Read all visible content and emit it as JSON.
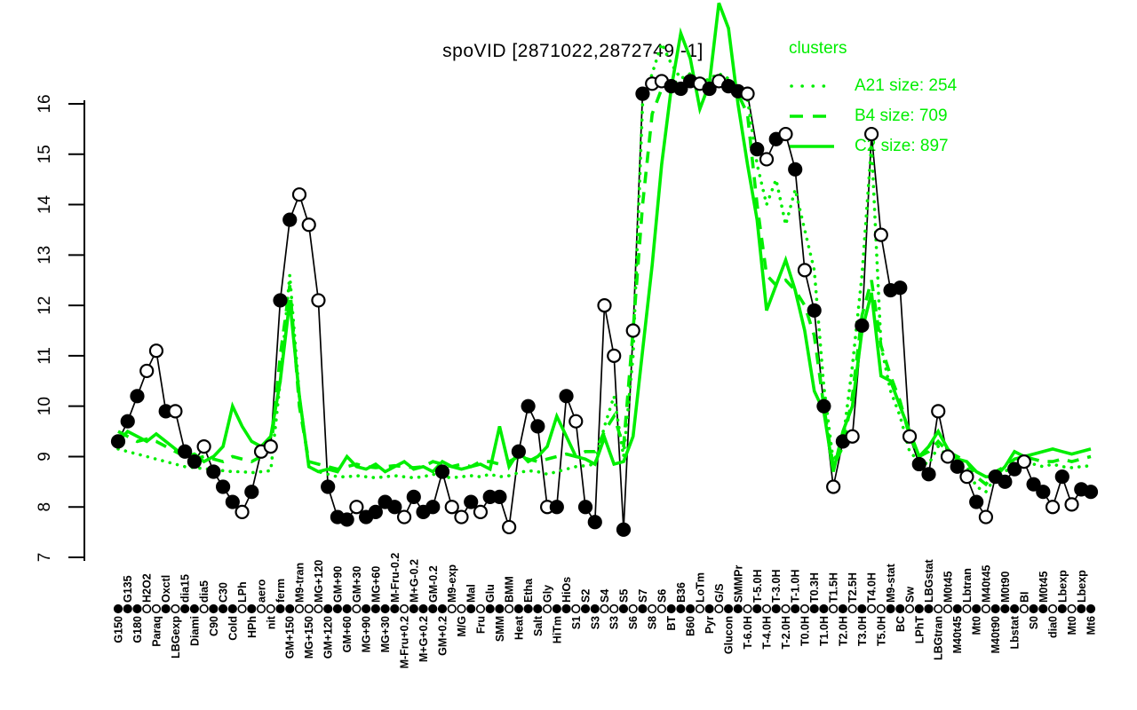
{
  "title_text": "spoVID [2871022,2872749,-1]",
  "legend_title": "clusters",
  "colors": {
    "cluster_green": "#00ee00",
    "gene_black": "#000000",
    "background": "#ffffff"
  },
  "chart_data": {
    "type": "line",
    "title": "spoVID [2871022,2872749,-1]",
    "xlabel": "",
    "ylabel": "",
    "ylim": [
      7,
      16
    ],
    "yticks": [
      "7",
      "8",
      "9",
      "10",
      "11",
      "12",
      "13",
      "14",
      "15",
      "16"
    ],
    "grid": false,
    "legend_position": "topright",
    "legend_title": "clusters",
    "categories": [
      "G150",
      "G135",
      "G180",
      "H2O2",
      "Paraq",
      "Oxctl",
      "LBGexp",
      "dia15",
      "Diami",
      "dia5",
      "C90",
      "C30",
      "Cold",
      "LPh",
      "HPh",
      "aero",
      "nit",
      "ferm",
      "GM+150",
      "M9-tran",
      "MG+150",
      "MG+120",
      "GM+120",
      "GM+90",
      "GM+60",
      "GM+30",
      "MG+90",
      "MG+60",
      "MG+30",
      "M-Fru-0.2",
      "M-Fru+0.2",
      "M+G-0.2",
      "M+G+0.2",
      "GM-0.2",
      "GM+0.2",
      "M9-exp",
      "M/G",
      "Mal",
      "Fru",
      "Glu",
      "SMM",
      "BMM",
      "Heat",
      "Etha",
      "Salt",
      "Gly",
      "HiTm",
      "HiOs",
      "S1",
      "S2",
      "S3",
      "S4",
      "S3",
      "S5",
      "S6",
      "S7",
      "S8",
      "S6",
      "BT",
      "B36",
      "B60",
      "LoTm",
      "Pyr",
      "G/S",
      "Glucon",
      "SMMPr",
      "T-6.0H",
      "T-5.0H",
      "T-4.0H",
      "T-3.0H",
      "T-2.0H",
      "T-1.0H",
      "T0.0H",
      "T0.3H",
      "T1.0H",
      "T1.5H",
      "T2.0H",
      "T2.5H",
      "T3.0H",
      "T4.0H",
      "T5.0H",
      "M9-stat",
      "BC",
      "Sw",
      "LPhT",
      "LBGstat",
      "LBGtran",
      "M0t45",
      "M40t45",
      "Lbtran",
      "Mt0",
      "M40t45",
      "M40t90",
      "M0t90",
      "Lbstat",
      "BI",
      "S0",
      "M0t45",
      "dia0",
      "Lbexp",
      "Mt0",
      "Lbexp",
      "Mt6"
    ],
    "gene_series": {
      "name": "spoVID",
      "values": [
        9.3,
        9.7,
        10.2,
        10.7,
        11.1,
        9.9,
        9.9,
        9.1,
        8.9,
        9.2,
        8.7,
        8.4,
        8.1,
        7.9,
        8.3,
        9.1,
        9.2,
        12.1,
        13.7,
        14.2,
        13.6,
        12.1,
        8.4,
        7.8,
        7.75,
        8.0,
        7.8,
        7.9,
        8.1,
        8.0,
        7.8,
        8.2,
        7.9,
        8.0,
        8.7,
        8.0,
        7.8,
        8.1,
        7.9,
        8.2,
        8.2,
        7.6,
        9.1,
        10.0,
        9.6,
        8.0,
        8.0,
        10.2,
        9.7,
        8.0,
        7.7,
        12.0,
        11.0,
        7.55,
        11.5,
        16.2,
        16.4,
        16.45,
        16.35,
        16.3,
        16.45,
        16.4,
        16.3,
        16.45,
        16.35,
        16.25,
        16.2,
        15.1,
        14.9,
        15.3,
        15.4,
        14.7,
        12.7,
        11.9,
        10.0,
        8.4,
        9.3,
        9.4,
        11.6,
        15.4,
        13.4,
        12.3,
        12.35,
        9.4,
        8.85,
        8.65,
        9.9,
        9.0,
        8.8,
        8.6,
        8.1,
        7.8,
        8.6,
        8.5,
        8.75,
        8.9,
        8.45,
        8.3,
        8.0,
        8.6,
        8.05,
        8.35,
        8.3
      ],
      "filled": [
        1,
        1,
        1,
        0,
        0,
        1,
        0,
        1,
        1,
        0,
        1,
        1,
        1,
        0,
        1,
        0,
        0,
        1,
        1,
        0,
        0,
        0,
        1,
        1,
        1,
        0,
        1,
        1,
        1,
        1,
        0,
        1,
        1,
        1,
        1,
        0,
        0,
        1,
        0,
        1,
        1,
        0,
        1,
        1,
        1,
        0,
        1,
        1,
        0,
        1,
        1,
        0,
        0,
        1,
        0,
        1,
        0,
        0,
        1,
        1,
        1,
        0,
        1,
        0,
        1,
        1,
        0,
        1,
        0,
        1,
        0,
        1,
        0,
        1,
        1,
        0,
        1,
        0,
        1,
        0,
        0,
        1,
        1,
        0,
        1,
        1,
        0,
        0,
        1,
        0,
        1,
        0,
        1,
        1,
        1,
        0,
        1,
        1,
        0,
        1,
        0,
        1,
        1
      ]
    },
    "cluster_series": [
      {
        "name": "A21 size: 254",
        "dash": "dotted",
        "values": [
          9.15,
          9.1,
          9.05,
          9.0,
          8.95,
          8.9,
          8.85,
          8.8,
          8.78,
          8.76,
          8.74,
          8.72,
          8.7,
          8.7,
          8.68,
          8.7,
          8.72,
          10.5,
          12.6,
          10.2,
          8.8,
          8.7,
          8.65,
          8.6,
          8.6,
          8.62,
          8.6,
          8.58,
          8.6,
          8.62,
          8.6,
          8.58,
          8.6,
          8.65,
          8.6,
          8.58,
          8.6,
          8.62,
          8.6,
          8.65,
          8.6,
          8.62,
          8.68,
          8.72,
          8.7,
          8.65,
          8.7,
          8.75,
          8.8,
          8.82,
          8.85,
          9.6,
          10.2,
          9.0,
          11.0,
          16.0,
          16.6,
          17.2,
          16.8,
          16.5,
          16.6,
          16.4,
          16.5,
          16.6,
          16.5,
          16.3,
          16.1,
          14.8,
          14.0,
          14.5,
          13.6,
          14.3,
          13.5,
          12.7,
          10.4,
          8.9,
          9.3,
          10.8,
          12.6,
          15.2,
          11.2,
          10.3,
          9.8,
          9.1,
          8.9,
          8.85,
          9.2,
          9.0,
          8.9,
          8.8,
          8.4,
          8.3,
          8.6,
          8.7,
          8.85,
          8.9,
          8.85,
          8.8,
          8.85,
          8.8,
          8.78,
          8.8,
          8.82
        ]
      },
      {
        "name": "B4 size: 709",
        "dash": "dashed",
        "values": [
          9.5,
          9.4,
          9.3,
          9.35,
          9.3,
          9.2,
          9.1,
          9.0,
          8.95,
          9.0,
          8.95,
          8.9,
          9.0,
          8.95,
          8.9,
          9.0,
          9.1,
          11.0,
          12.4,
          10.0,
          8.9,
          8.85,
          8.8,
          8.75,
          8.8,
          8.85,
          8.8,
          8.78,
          8.8,
          8.82,
          8.8,
          8.78,
          8.8,
          8.9,
          8.85,
          8.8,
          8.85,
          8.8,
          8.9,
          8.9,
          8.85,
          8.9,
          9.0,
          8.95,
          8.9,
          8.95,
          9.0,
          9.05,
          9.0,
          9.1,
          9.1,
          9.5,
          9.8,
          9.2,
          11.5,
          14.0,
          15.8,
          16.3,
          16.4,
          16.45,
          16.4,
          16.35,
          16.4,
          16.45,
          16.35,
          16.2,
          15.8,
          14.0,
          12.6,
          12.4,
          12.5,
          12.3,
          12.0,
          11.4,
          10.0,
          8.8,
          9.2,
          10.2,
          11.8,
          12.5,
          11.2,
          10.6,
          10.1,
          9.4,
          9.0,
          9.1,
          9.3,
          9.1,
          9.0,
          8.9,
          8.6,
          8.45,
          8.7,
          8.8,
          8.95,
          9.0,
          8.95,
          8.9,
          8.9,
          8.95,
          8.9,
          8.95,
          9.0
        ]
      },
      {
        "name": "C2 size: 897",
        "dash": "solid",
        "values": [
          9.3,
          9.5,
          9.4,
          9.3,
          9.45,
          9.3,
          9.15,
          9.0,
          9.05,
          8.9,
          9.0,
          9.2,
          10.0,
          9.6,
          9.3,
          9.2,
          9.4,
          10.5,
          12.1,
          10.2,
          8.8,
          8.7,
          8.75,
          8.7,
          9.0,
          8.8,
          8.75,
          8.85,
          8.7,
          8.8,
          8.9,
          8.75,
          8.8,
          8.7,
          8.9,
          8.8,
          8.75,
          8.8,
          8.85,
          8.75,
          9.6,
          8.8,
          9.1,
          8.9,
          9.0,
          9.2,
          9.8,
          9.4,
          9.0,
          8.95,
          8.85,
          9.38,
          8.85,
          8.9,
          9.4,
          11.1,
          12.8,
          14.8,
          16.3,
          17.4,
          16.9,
          15.9,
          16.4,
          18.0,
          17.5,
          16.0,
          14.8,
          13.7,
          11.9,
          12.4,
          12.9,
          12.3,
          11.5,
          10.3,
          9.9,
          8.7,
          9.5,
          10.0,
          11.5,
          12.25,
          10.6,
          10.5,
          10.0,
          9.5,
          9.0,
          9.2,
          9.5,
          9.15,
          8.95,
          8.9,
          8.7,
          8.6,
          8.6,
          8.8,
          9.1,
          9.0,
          9.05,
          9.1,
          9.15,
          9.1,
          9.05,
          9.1,
          9.15
        ]
      }
    ]
  }
}
